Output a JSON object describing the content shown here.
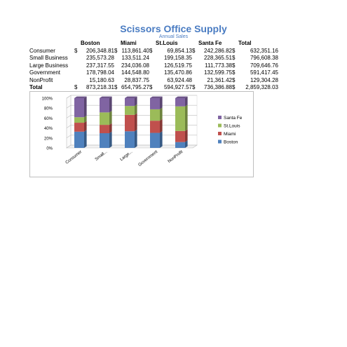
{
  "header": {
    "title": "Scissors Office Supply",
    "subtitle": "Annual Sales"
  },
  "table": {
    "columns": [
      "Boston",
      "Miami",
      "St.Louis",
      "Santa Fe",
      "Total"
    ],
    "currency": "$",
    "rows": [
      {
        "label": "Consumer",
        "values": [
          "206,348.81",
          "113,861.40",
          "69,854.13",
          "242,286.82",
          "632,351.16"
        ],
        "show_currency": true
      },
      {
        "label": "Small Business",
        "values": [
          "235,573.28",
          "133,511.24",
          "199,158.35",
          "228,365.51",
          "796,608.38"
        ],
        "show_currency": false
      },
      {
        "label": "Large Business",
        "values": [
          "237,317.55",
          "234,036.08",
          "126,519.75",
          "111,773.38",
          "709,646.76"
        ],
        "show_currency": false
      },
      {
        "label": "Government",
        "values": [
          "178,798.04",
          "144,548.80",
          "135,470.86",
          "132,599.75",
          "591,417.45"
        ],
        "show_currency": false
      },
      {
        "label": "NonProfit",
        "values": [
          "15,180.63",
          "28,837.75",
          "63,924.48",
          "21,361.42",
          "129,304.28"
        ],
        "show_currency": false
      },
      {
        "label": "Total",
        "values": [
          "873,218.31",
          "654,795.27",
          "594,927.57",
          "736,386.88",
          "2,859,328.03"
        ],
        "show_currency": true
      }
    ]
  },
  "chart_data": {
    "type": "bar",
    "stacked": "percent",
    "style": "3d-column",
    "categories": [
      "Consumer",
      "Small...",
      "Large...",
      "Government",
      "NonProfit"
    ],
    "series": [
      {
        "name": "Boston",
        "values": [
          206348.81,
          235573.28,
          237317.55,
          178798.04,
          15180.63
        ],
        "color": "#4f81bd"
      },
      {
        "name": "Miami",
        "values": [
          113861.4,
          133511.24,
          234036.08,
          144548.8,
          28837.75
        ],
        "color": "#c0504d"
      },
      {
        "name": "St.Louis",
        "values": [
          69854.13,
          199158.35,
          126519.75,
          135470.86,
          63924.48
        ],
        "color": "#9bbb59"
      },
      {
        "name": "Santa Fe",
        "values": [
          242286.82,
          228365.51,
          111773.38,
          132599.75,
          21361.42
        ],
        "color": "#8064a2"
      }
    ],
    "yticks": [
      "0%",
      "20%",
      "40%",
      "60%",
      "80%",
      "100%"
    ],
    "ylim": [
      0,
      100
    ],
    "grid": true,
    "legend": "right"
  }
}
